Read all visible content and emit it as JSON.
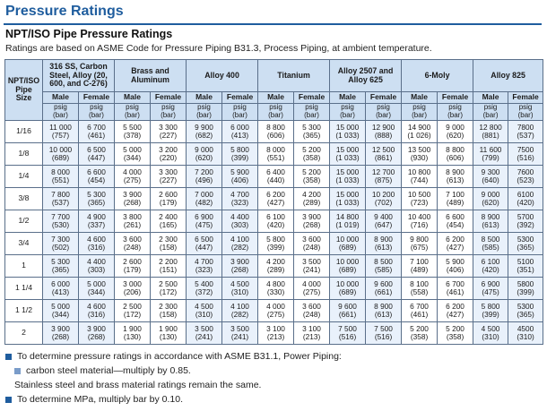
{
  "section_title": "Pressure Ratings",
  "subtitle": "NPT/ISO Pipe Pressure Ratings",
  "note": "Ratings are based on ASME Code for Pressure Piping B31.3, Process Piping, at ambient temperature.",
  "table": {
    "size_header": "NPT/ISO Pipe Size",
    "size_unit": "in.",
    "materials": [
      "316 SS, Carbon Steel, Alloy (20, 600, and C-276)",
      "Brass and Aluminum",
      "Alloy 400",
      "Titanium",
      "Alloy 2507 and Alloy 625",
      "6-Moly",
      "Alloy 825"
    ],
    "sub_male": "Male",
    "sub_female": "Female",
    "unit_psig": "psig",
    "unit_bar": "(bar)",
    "rows": [
      {
        "size": "1/16",
        "cells": [
          [
            "11 000",
            "(757)"
          ],
          [
            "6 700",
            "(461)"
          ],
          [
            "5 500",
            "(378)"
          ],
          [
            "3 300",
            "(227)"
          ],
          [
            "9 900",
            "(682)"
          ],
          [
            "6 000",
            "(413)"
          ],
          [
            "8 800",
            "(606)"
          ],
          [
            "5 300",
            "(365)"
          ],
          [
            "15 000",
            "(1 033)"
          ],
          [
            "12 900",
            "(888)"
          ],
          [
            "14 900",
            "(1 026)"
          ],
          [
            "9 000",
            "(620)"
          ],
          [
            "12 800",
            "(881)"
          ],
          [
            "7800",
            "(537)"
          ]
        ]
      },
      {
        "size": "1/8",
        "cells": [
          [
            "10 000",
            "(689)"
          ],
          [
            "6 500",
            "(447)"
          ],
          [
            "5 000",
            "(344)"
          ],
          [
            "3 200",
            "(220)"
          ],
          [
            "9 000",
            "(620)"
          ],
          [
            "5 800",
            "(399)"
          ],
          [
            "8 000",
            "(551)"
          ],
          [
            "5 200",
            "(358)"
          ],
          [
            "15 000",
            "(1 033)"
          ],
          [
            "12 500",
            "(861)"
          ],
          [
            "13 500",
            "(930)"
          ],
          [
            "8 800",
            "(606)"
          ],
          [
            "11 600",
            "(799)"
          ],
          [
            "7500",
            "(516)"
          ]
        ]
      },
      {
        "size": "1/4",
        "cells": [
          [
            "8 000",
            "(551)"
          ],
          [
            "6 600",
            "(454)"
          ],
          [
            "4 000",
            "(275)"
          ],
          [
            "3 300",
            "(227)"
          ],
          [
            "7 200",
            "(496)"
          ],
          [
            "5 900",
            "(406)"
          ],
          [
            "6 400",
            "(440)"
          ],
          [
            "5 200",
            "(358)"
          ],
          [
            "15 000",
            "(1 033)"
          ],
          [
            "12 700",
            "(875)"
          ],
          [
            "10 800",
            "(744)"
          ],
          [
            "8 900",
            "(613)"
          ],
          [
            "9 300",
            "(640)"
          ],
          [
            "7600",
            "(523)"
          ]
        ]
      },
      {
        "size": "3/8",
        "cells": [
          [
            "7 800",
            "(537)"
          ],
          [
            "5 300",
            "(365)"
          ],
          [
            "3 900",
            "(268)"
          ],
          [
            "2 600",
            "(179)"
          ],
          [
            "7 000",
            "(482)"
          ],
          [
            "4 700",
            "(323)"
          ],
          [
            "6 200",
            "(427)"
          ],
          [
            "4 200",
            "(289)"
          ],
          [
            "15 000",
            "(1 033)"
          ],
          [
            "10 200",
            "(702)"
          ],
          [
            "10 500",
            "(723)"
          ],
          [
            "7 100",
            "(489)"
          ],
          [
            "9 000",
            "(620)"
          ],
          [
            "6100",
            "(420)"
          ]
        ]
      },
      {
        "size": "1/2",
        "cells": [
          [
            "7 700",
            "(530)"
          ],
          [
            "4 900",
            "(337)"
          ],
          [
            "3 800",
            "(261)"
          ],
          [
            "2 400",
            "(165)"
          ],
          [
            "6 900",
            "(475)"
          ],
          [
            "4 400",
            "(303)"
          ],
          [
            "6 100",
            "(420)"
          ],
          [
            "3 900",
            "(268)"
          ],
          [
            "14 800",
            "(1 019)"
          ],
          [
            "9 400",
            "(647)"
          ],
          [
            "10 400",
            "(716)"
          ],
          [
            "6 600",
            "(454)"
          ],
          [
            "8 900",
            "(613)"
          ],
          [
            "5700",
            "(392)"
          ]
        ]
      },
      {
        "size": "3/4",
        "cells": [
          [
            "7 300",
            "(502)"
          ],
          [
            "4 600",
            "(316)"
          ],
          [
            "3 600",
            "(248)"
          ],
          [
            "2 300",
            "(158)"
          ],
          [
            "6 500",
            "(447)"
          ],
          [
            "4 100",
            "(282)"
          ],
          [
            "5 800",
            "(399)"
          ],
          [
            "3 600",
            "(248)"
          ],
          [
            "10 000",
            "(689)"
          ],
          [
            "8 900",
            "(613)"
          ],
          [
            "9 800",
            "(675)"
          ],
          [
            "6 200",
            "(427)"
          ],
          [
            "8 500",
            "(585)"
          ],
          [
            "5300",
            "(365)"
          ]
        ]
      },
      {
        "size": "1",
        "cells": [
          [
            "5 300",
            "(365)"
          ],
          [
            "4 400",
            "(303)"
          ],
          [
            "2 600",
            "(179)"
          ],
          [
            "2 200",
            "(151)"
          ],
          [
            "4 700",
            "(323)"
          ],
          [
            "3 900",
            "(268)"
          ],
          [
            "4 200",
            "(289)"
          ],
          [
            "3 500",
            "(241)"
          ],
          [
            "10 000",
            "(689)"
          ],
          [
            "8 500",
            "(585)"
          ],
          [
            "7 100",
            "(489)"
          ],
          [
            "5 900",
            "(406)"
          ],
          [
            "6 100",
            "(420)"
          ],
          [
            "5100",
            "(351)"
          ]
        ]
      },
      {
        "size": "1 1/4",
        "cells": [
          [
            "6 000",
            "(413)"
          ],
          [
            "5 000",
            "(344)"
          ],
          [
            "3 000",
            "(206)"
          ],
          [
            "2 500",
            "(172)"
          ],
          [
            "5 400",
            "(372)"
          ],
          [
            "4 500",
            "(310)"
          ],
          [
            "4 800",
            "(330)"
          ],
          [
            "4 000",
            "(275)"
          ],
          [
            "10 000",
            "(689)"
          ],
          [
            "9 600",
            "(661)"
          ],
          [
            "8 100",
            "(558)"
          ],
          [
            "6 700",
            "(461)"
          ],
          [
            "6 900",
            "(475)"
          ],
          [
            "5800",
            "(399)"
          ]
        ]
      },
      {
        "size": "1 1/2",
        "cells": [
          [
            "5 000",
            "(344)"
          ],
          [
            "4 600",
            "(316)"
          ],
          [
            "2 500",
            "(172)"
          ],
          [
            "2 300",
            "(158)"
          ],
          [
            "4 500",
            "(310)"
          ],
          [
            "4 100",
            "(282)"
          ],
          [
            "4 000",
            "(275)"
          ],
          [
            "3 600",
            "(248)"
          ],
          [
            "9 600",
            "(661)"
          ],
          [
            "8 900",
            "(613)"
          ],
          [
            "6 700",
            "(461)"
          ],
          [
            "6 200",
            "(427)"
          ],
          [
            "5 800",
            "(399)"
          ],
          [
            "5300",
            "(365)"
          ]
        ]
      },
      {
        "size": "2",
        "cells": [
          [
            "3 900",
            "(268)"
          ],
          [
            "3 900",
            "(268)"
          ],
          [
            "1 900",
            "(130)"
          ],
          [
            "1 900",
            "(130)"
          ],
          [
            "3 500",
            "(241)"
          ],
          [
            "3 500",
            "(241)"
          ],
          [
            "3 100",
            "(213)"
          ],
          [
            "3 100",
            "(213)"
          ],
          [
            "7 500",
            "(516)"
          ],
          [
            "7 500",
            "(516)"
          ],
          [
            "5 200",
            "(358)"
          ],
          [
            "5 200",
            "(358)"
          ],
          [
            "4 500",
            "(310)"
          ],
          [
            "4500",
            "(310)"
          ]
        ]
      }
    ]
  },
  "footnotes": {
    "line1": "To determine pressure ratings in accordance with ASME B31.1, Power Piping:",
    "line2": "carbon steel material—multiply by 0.85.",
    "line3": "Stainless steel and brass material ratings remain the same.",
    "line4": "To determine MPa, multiply bar by 0.10."
  },
  "colors": {
    "accent": "#1f5d9e",
    "header_fill": "#cddff2",
    "alt_fill": "#e9f1fb"
  }
}
